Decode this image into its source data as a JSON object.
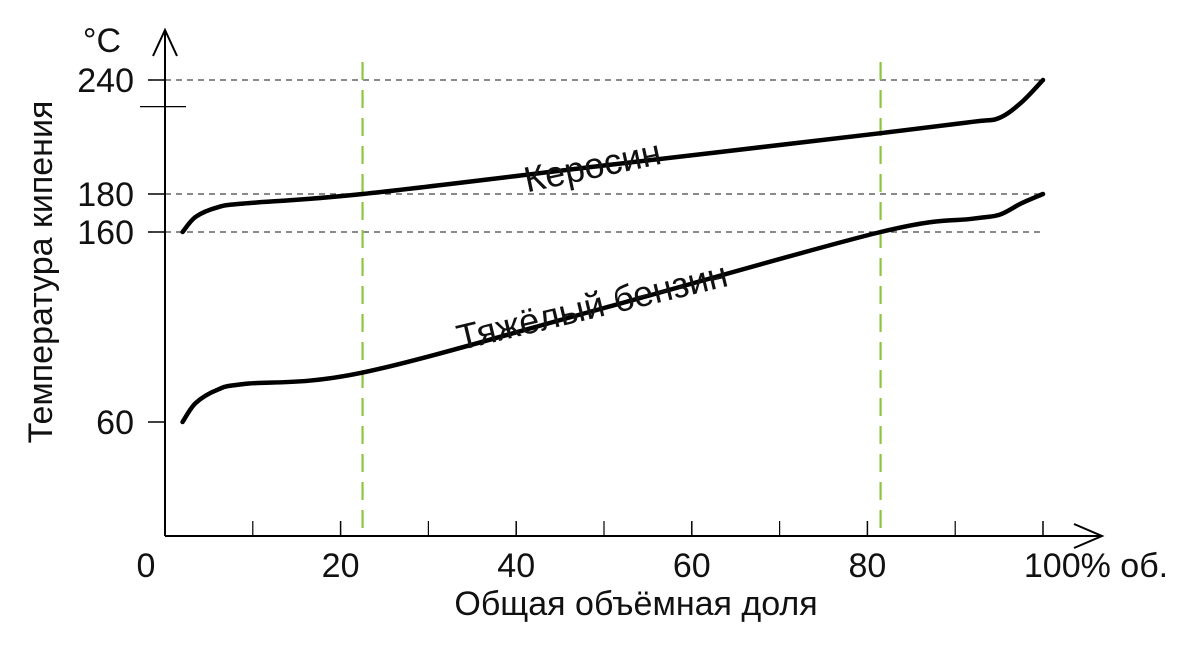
{
  "chart_data": {
    "type": "line",
    "title": "",
    "xlabel": "Общая объёмная доля",
    "ylabel": "Температура кипения",
    "y_unit": "°C",
    "x_end_label": "100% об.",
    "xlim": [
      0,
      100
    ],
    "ylim": [
      0,
      250
    ],
    "x_ticks": [
      0,
      20,
      40,
      60,
      80
    ],
    "x_minor_ticks": [
      10,
      30,
      50,
      70,
      90
    ],
    "y_ticks": [
      60,
      160,
      180,
      240
    ],
    "y_minor_ticks": [
      226
    ],
    "reference_hlines": [
      240,
      180,
      160
    ],
    "reference_vlines": [
      22.5,
      81.5
    ],
    "colors": {
      "curves": "#000000",
      "axes": "#000000",
      "hline": "#444444",
      "vline": "#8cc63f"
    },
    "series": [
      {
        "name": "Керосин",
        "points": [
          [
            2,
            160
          ],
          [
            3.5,
            168
          ],
          [
            6,
            173
          ],
          [
            9,
            175
          ],
          [
            22.5,
            180
          ],
          [
            50,
            195
          ],
          [
            81.5,
            212
          ],
          [
            92,
            218
          ],
          [
            95,
            220
          ],
          [
            97.5,
            228
          ],
          [
            100,
            240
          ]
        ]
      },
      {
        "name": "Тяжёлый бензин",
        "points": [
          [
            2,
            60
          ],
          [
            3.5,
            70
          ],
          [
            6,
            77
          ],
          [
            9,
            80
          ],
          [
            22.5,
            86
          ],
          [
            50,
            120
          ],
          [
            81.5,
            160
          ],
          [
            92,
            167
          ],
          [
            95,
            169
          ],
          [
            97.5,
            175
          ],
          [
            100,
            180
          ]
        ]
      }
    ]
  }
}
